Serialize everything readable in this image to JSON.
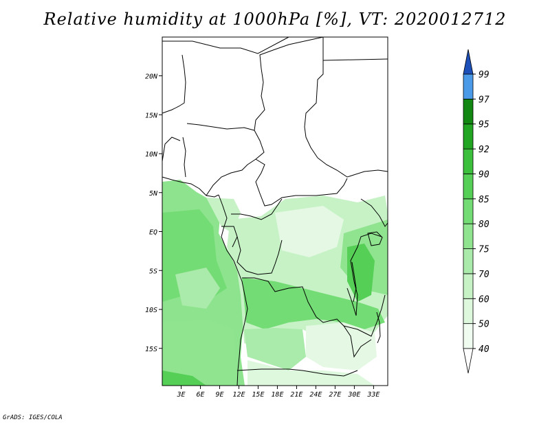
{
  "title": "Relative humidity at 1000hPa [%], VT: 2020012712",
  "credit": "GrADS: IGES/COLA",
  "map": {
    "lat_ticks": [
      {
        "value": 20,
        "label": "20N"
      },
      {
        "value": 15,
        "label": "15N"
      },
      {
        "value": 10,
        "label": "10N"
      },
      {
        "value": 5,
        "label": "5N"
      },
      {
        "value": 0,
        "label": "EQ"
      },
      {
        "value": -5,
        "label": "5S"
      },
      {
        "value": -10,
        "label": "10S"
      },
      {
        "value": -15,
        "label": "15S"
      }
    ],
    "lon_ticks": [
      {
        "value": 3,
        "label": "3E"
      },
      {
        "value": 6,
        "label": "6E"
      },
      {
        "value": 9,
        "label": "9E"
      },
      {
        "value": 12,
        "label": "12E"
      },
      {
        "value": 15,
        "label": "15E"
      },
      {
        "value": 18,
        "label": "18E"
      },
      {
        "value": 21,
        "label": "21E"
      },
      {
        "value": 24,
        "label": "24E"
      },
      {
        "value": 27,
        "label": "27E"
      },
      {
        "value": 30,
        "label": "30E"
      },
      {
        "value": 33,
        "label": "33E"
      }
    ]
  },
  "colorbar": {
    "levels": [
      {
        "label": "40",
        "color": "#f0fcf0"
      },
      {
        "label": "50",
        "color": "#def8de"
      },
      {
        "label": "60",
        "color": "#c6f2c6"
      },
      {
        "label": "70",
        "color": "#aaeaaa"
      },
      {
        "label": "75",
        "color": "#90e490"
      },
      {
        "label": "80",
        "color": "#74dc74"
      },
      {
        "label": "85",
        "color": "#56cf56"
      },
      {
        "label": "90",
        "color": "#3cbf3c"
      },
      {
        "label": "92",
        "color": "#22a522"
      },
      {
        "label": "95",
        "color": "#128812"
      },
      {
        "label": "97",
        "color": "#4b9ae8"
      },
      {
        "label": "99",
        "color": "#2a70d8"
      }
    ],
    "top_color": "#1c50b8",
    "bottom_color": "#ffffff"
  }
}
